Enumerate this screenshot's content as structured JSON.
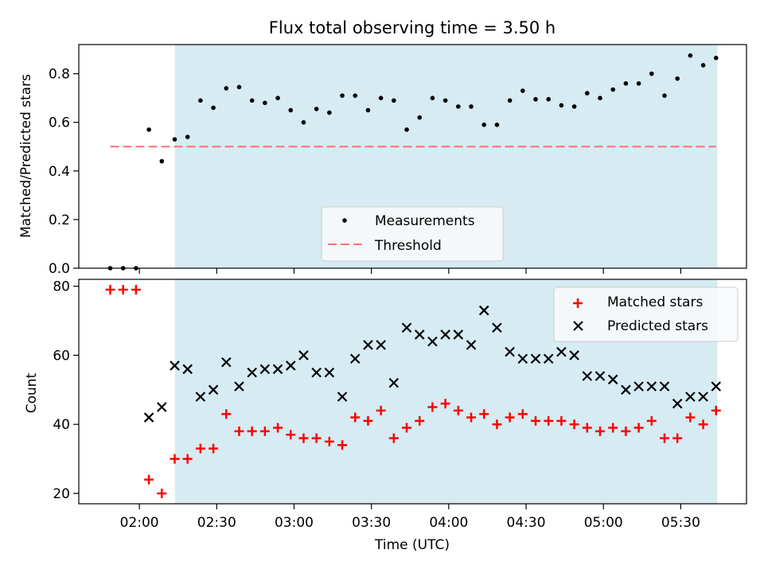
{
  "chart_data": [
    {
      "type": "scatter",
      "title": "Flux total observing time = 3.50 h",
      "xlabel": "",
      "ylabel": "Matched/Predicted stars",
      "ylim": [
        0,
        0.92
      ],
      "yticks": [
        "0.0",
        "0.2",
        "0.4",
        "0.6",
        "0.8"
      ],
      "x_unit": "minutes after 02:00 UTC",
      "highlight_span": {
        "start": 13.8,
        "end": 224.2,
        "color": "#add8e6"
      },
      "legend": {
        "placement": "lower center",
        "entries": [
          "Measurements",
          "Threshold"
        ]
      },
      "series": [
        {
          "name": "Measurements",
          "marker": "dot",
          "color": "#000000",
          "x": [
            -11.3,
            -6.3,
            -1.3,
            3.7,
            8.7,
            13.7,
            18.7,
            23.7,
            28.7,
            33.7,
            38.7,
            43.7,
            48.7,
            53.7,
            58.7,
            63.7,
            68.7,
            73.7,
            78.7,
            83.7,
            88.7,
            93.7,
            98.7,
            103.7,
            108.7,
            113.7,
            118.7,
            123.7,
            128.7,
            133.7,
            138.7,
            143.7,
            148.7,
            153.7,
            158.7,
            163.7,
            168.7,
            173.7,
            178.7,
            183.7,
            188.7,
            193.7,
            198.7,
            203.7,
            208.7,
            213.7,
            218.7,
            223.7
          ],
          "y": [
            0.0,
            0.0,
            0.0,
            0.57,
            0.44,
            0.53,
            0.54,
            0.69,
            0.66,
            0.74,
            0.745,
            0.69,
            0.68,
            0.7,
            0.65,
            0.6,
            0.655,
            0.64,
            0.71,
            0.71,
            0.65,
            0.7,
            0.69,
            0.57,
            0.62,
            0.7,
            0.69,
            0.665,
            0.665,
            0.59,
            0.59,
            0.69,
            0.73,
            0.695,
            0.695,
            0.67,
            0.665,
            0.72,
            0.7,
            0.735,
            0.76,
            0.76,
            0.8,
            0.71,
            0.78,
            0.875,
            0.835,
            0.865
          ]
        },
        {
          "name": "Threshold",
          "style": "dashed",
          "color": "#ff7070",
          "x": [
            -11.3,
            223.7
          ],
          "y": [
            0.5,
            0.5
          ]
        }
      ]
    },
    {
      "type": "scatter",
      "title": "",
      "xlabel": "Time (UTC)",
      "ylabel": "Count",
      "ylim": [
        17,
        82
      ],
      "yticks": [
        "20",
        "40",
        "60",
        "80"
      ],
      "xlim": [
        -23.5,
        235.5
      ],
      "xticks": [
        {
          "value": 0,
          "label": "02:00"
        },
        {
          "value": 30,
          "label": "02:30"
        },
        {
          "value": 60,
          "label": "03:00"
        },
        {
          "value": 90,
          "label": "03:30"
        },
        {
          "value": 120,
          "label": "04:00"
        },
        {
          "value": 150,
          "label": "04:30"
        },
        {
          "value": 180,
          "label": "05:00"
        },
        {
          "value": 210,
          "label": "05:30"
        }
      ],
      "x_unit": "minutes after 02:00 UTC",
      "highlight_span": {
        "start": 13.8,
        "end": 224.2,
        "color": "#add8e6"
      },
      "legend": {
        "placement": "top right",
        "entries": [
          "Matched stars",
          "Predicted stars"
        ]
      },
      "series": [
        {
          "name": "Matched stars",
          "marker": "plus",
          "color": "#ff0000",
          "x": [
            -11.3,
            -6.3,
            -1.3,
            3.7,
            8.7,
            13.7,
            18.7,
            23.7,
            28.7,
            33.7,
            38.7,
            43.7,
            48.7,
            53.7,
            58.7,
            63.7,
            68.7,
            73.7,
            78.7,
            83.7,
            88.7,
            93.7,
            98.7,
            103.7,
            108.7,
            113.7,
            118.7,
            123.7,
            128.7,
            133.7,
            138.7,
            143.7,
            148.7,
            153.7,
            158.7,
            163.7,
            168.7,
            173.7,
            178.7,
            183.7,
            188.7,
            193.7,
            198.7,
            203.7,
            208.7,
            213.7,
            218.7,
            223.7
          ],
          "y": [
            79,
            79,
            79,
            24,
            20,
            30,
            30,
            33,
            33,
            43,
            38,
            38,
            38,
            39,
            37,
            36,
            36,
            35,
            34,
            42,
            41,
            44,
            36,
            39,
            41,
            45,
            46,
            44,
            42,
            43,
            40,
            42,
            43,
            41,
            41,
            41,
            40,
            39,
            38,
            39,
            38,
            39,
            41,
            36,
            36,
            42,
            40,
            44
          ]
        },
        {
          "name": "Predicted stars",
          "marker": "x",
          "color": "#000000",
          "x": [
            3.7,
            8.7,
            13.7,
            18.7,
            23.7,
            28.7,
            33.7,
            38.7,
            43.7,
            48.7,
            53.7,
            58.7,
            63.7,
            68.7,
            73.7,
            78.7,
            83.7,
            88.7,
            93.7,
            98.7,
            103.7,
            108.7,
            113.7,
            118.7,
            123.7,
            128.7,
            133.7,
            138.7,
            143.7,
            148.7,
            153.7,
            158.7,
            163.7,
            168.7,
            173.7,
            178.7,
            183.7,
            188.7,
            193.7,
            198.7,
            203.7,
            208.7,
            213.7,
            218.7,
            223.7
          ],
          "y": [
            42,
            45,
            57,
            56,
            48,
            50,
            58,
            51,
            55,
            56,
            56,
            57,
            60,
            55,
            55,
            48,
            59,
            63,
            63,
            52,
            68,
            66,
            64,
            66,
            66,
            63,
            73,
            68,
            61,
            59,
            59,
            59,
            61,
            60,
            54,
            54,
            53,
            50,
            51,
            51,
            51,
            46,
            48,
            48,
            51
          ]
        }
      ]
    }
  ]
}
